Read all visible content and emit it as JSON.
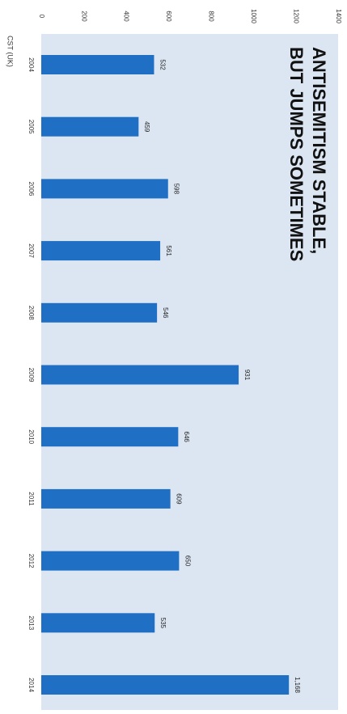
{
  "chart_data": {
    "type": "bar",
    "orientation": "vertical",
    "title_lines": [
      "ANTISEMITISM STABLE,",
      "BUT JUMPS SOMETIMES"
    ],
    "source": "CST (UK)",
    "categories": [
      "2004",
      "2005",
      "2006",
      "2007",
      "2008",
      "2009",
      "2010",
      "2011",
      "2012",
      "2013",
      "2014"
    ],
    "values": [
      532,
      459,
      598,
      561,
      546,
      931,
      646,
      609,
      650,
      535,
      1168
    ],
    "value_labels": [
      "532",
      "459",
      "598",
      "561",
      "546",
      "931",
      "646",
      "609",
      "650",
      "535",
      "1,168"
    ],
    "y_ticks": [
      0,
      200,
      400,
      600,
      800,
      1000,
      1200,
      1400
    ],
    "ylim": [
      0,
      1400
    ],
    "grid": false,
    "legend": "none",
    "colors": {
      "bar": "#1f6fc5",
      "plot_background": "#dce6f2"
    }
  }
}
